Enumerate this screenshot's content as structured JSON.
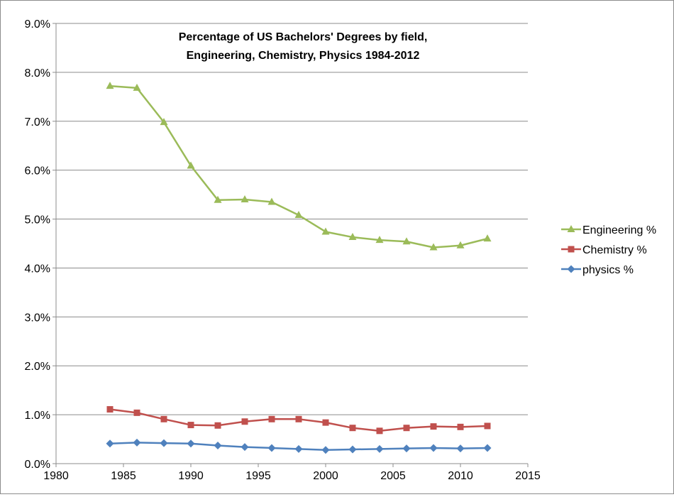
{
  "chart_data": {
    "type": "line",
    "title_lines": [
      "Percentage of US Bachelors' Degrees  by field,",
      "Engineering, Chemistry, Physics  1984-2012"
    ],
    "xlabel": "",
    "ylabel": "",
    "xlim": [
      1980,
      2015
    ],
    "ylim": [
      0,
      0.09
    ],
    "x_ticks": [
      1980,
      1985,
      1990,
      1995,
      2000,
      2005,
      2010,
      2015
    ],
    "y_ticks": [
      0,
      0.01,
      0.02,
      0.03,
      0.04,
      0.05,
      0.06,
      0.07,
      0.08,
      0.09
    ],
    "x_tick_labels": [
      "1980",
      "1985",
      "1990",
      "1995",
      "2000",
      "2005",
      "2010",
      "2015"
    ],
    "y_tick_labels": [
      "0.0%",
      "1.0%",
      "2.0%",
      "3.0%",
      "4.0%",
      "5.0%",
      "6.0%",
      "7.0%",
      "8.0%",
      "9.0%"
    ],
    "grid": "horizontal",
    "legend_position": "right",
    "x": [
      1984,
      1986,
      1988,
      1990,
      1992,
      1994,
      1996,
      1998,
      2000,
      2002,
      2004,
      2006,
      2008,
      2010,
      2012
    ],
    "series": [
      {
        "name": "Engineering %",
        "color": "#9bbb59",
        "marker": "triangle",
        "values": [
          0.0772,
          0.0768,
          0.0698,
          0.0609,
          0.0539,
          0.054,
          0.0535,
          0.0508,
          0.0474,
          0.0463,
          0.0457,
          0.0454,
          0.0442,
          0.0446,
          0.046
        ]
      },
      {
        "name": "Chemistry %",
        "color": "#c0504d",
        "marker": "square",
        "values": [
          0.0111,
          0.0104,
          0.0091,
          0.0079,
          0.0078,
          0.0086,
          0.0091,
          0.0091,
          0.0084,
          0.0073,
          0.0067,
          0.0073,
          0.0076,
          0.0075,
          0.0077
        ]
      },
      {
        "name": "physics %",
        "color": "#4f81bd",
        "marker": "diamond",
        "values": [
          0.0041,
          0.0043,
          0.0042,
          0.0041,
          0.0037,
          0.0034,
          0.0032,
          0.003,
          0.0028,
          0.0029,
          0.003,
          0.0031,
          0.0032,
          0.0031,
          0.0032
        ]
      }
    ]
  }
}
